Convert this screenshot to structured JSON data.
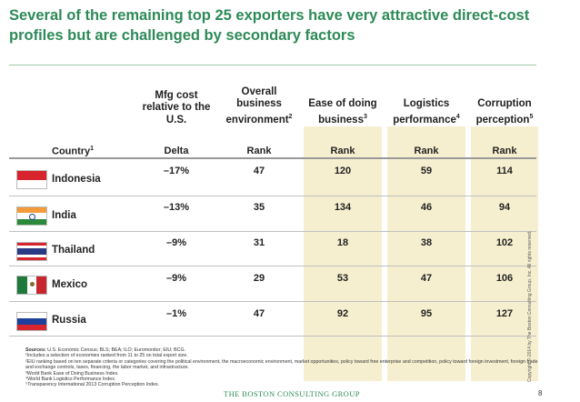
{
  "title": "Several of the remaining top 25 exporters have very attractive direct-cost profiles but are challenged by secondary factors",
  "columns": [
    {
      "head": "Mfg cost relative to the U.S.",
      "sup": "",
      "sub": "Delta"
    },
    {
      "head": "Overall business environment",
      "sup": "2",
      "sub": "Rank"
    },
    {
      "head": "Ease of doing business",
      "sup": "3",
      "sub": "Rank"
    },
    {
      "head": "Logistics performance",
      "sup": "4",
      "sub": "Rank"
    },
    {
      "head": "Corruption perception",
      "sup": "5",
      "sub": "Rank"
    }
  ],
  "country_header": "Country",
  "country_header_sup": "1",
  "rows": [
    {
      "country": "Indonesia",
      "flag": "indonesia-flag-icon",
      "values": [
        "–17%",
        "47",
        "120",
        "59",
        "114"
      ]
    },
    {
      "country": "India",
      "flag": "india-flag-icon",
      "values": [
        "–13%",
        "35",
        "134",
        "46",
        "94"
      ]
    },
    {
      "country": "Thailand",
      "flag": "thailand-flag-icon",
      "values": [
        "–9%",
        "31",
        "18",
        "38",
        "102"
      ]
    },
    {
      "country": "Mexico",
      "flag": "mexico-flag-icon",
      "values": [
        "–9%",
        "29",
        "53",
        "47",
        "106"
      ]
    },
    {
      "country": "Russia",
      "flag": "russia-flag-icon",
      "values": [
        "–1%",
        "47",
        "92",
        "95",
        "127"
      ]
    }
  ],
  "sources_label": "Sources:",
  "sources_text": "U.S. Economic Census; BLS; BEA; ILO; Euromonitor; EIU; BCG.",
  "footnotes": [
    "¹Includes a selection of economies ranked from 11 to 25 on total export size.",
    "²EIU ranking based on ten separate criteria or categories covering the political environment, the macroeconomic environment, market opportunities, policy toward free enterprise and competition, policy toward foreign investment, foreign trade and exchange controls, taxes, financing, the labor market, and infrastructure.",
    "³World Bank Ease of Doing Business Index.",
    "⁴World Bank Logistics Performance Index.",
    "⁵Transparency International 2013 Corruption Perception Index."
  ],
  "logo_text": "THE BOSTON CONSULTING GROUP",
  "page_number": "8",
  "copyright": "Copyright © 2014 by The Boston Consulting Group, Inc. All rights reserved.",
  "colors": {
    "title": "#2d8a57",
    "shade": "#f6efcf"
  }
}
